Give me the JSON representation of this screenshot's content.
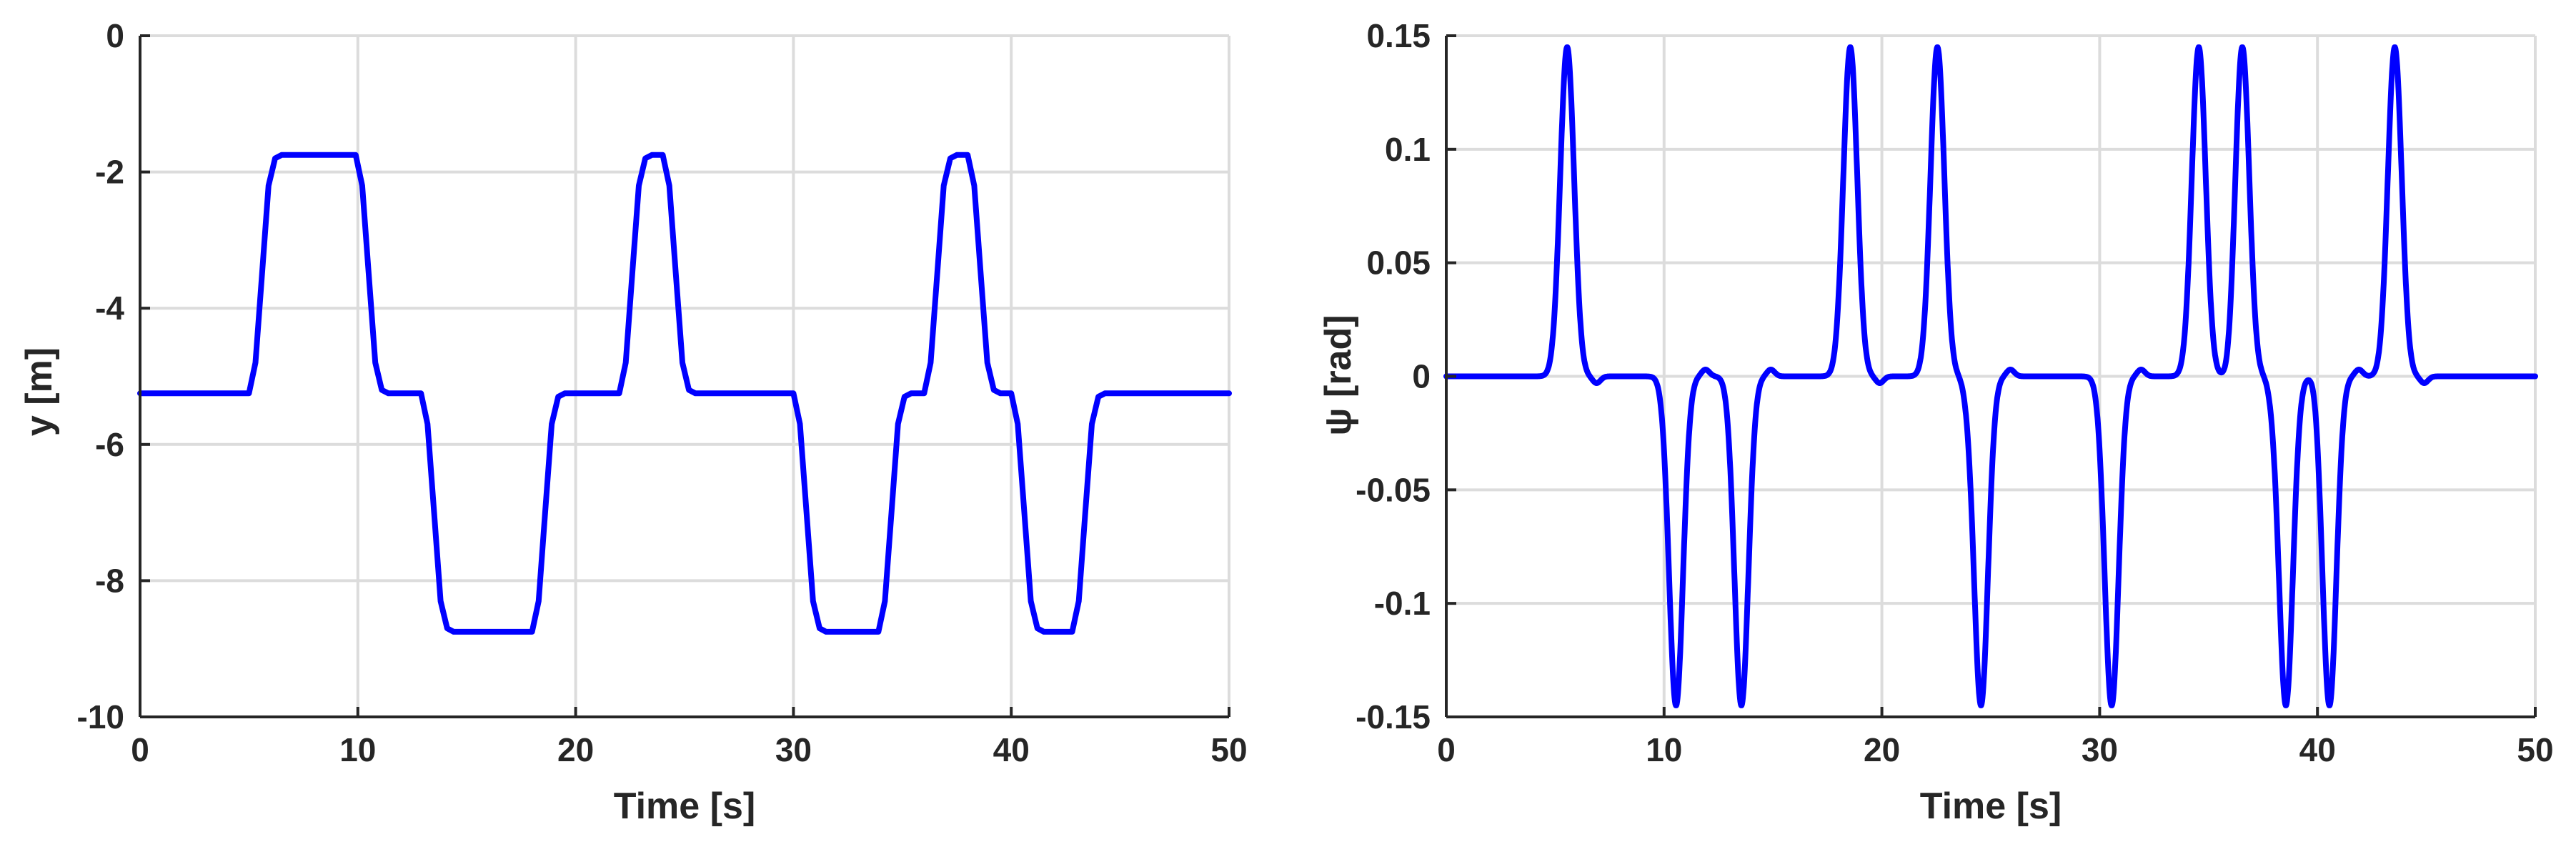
{
  "colors": {
    "line": "#0000ff",
    "grid": "#dcdcdc",
    "axis": "#262626"
  },
  "chart_data": [
    {
      "type": "line",
      "title": "",
      "xlabel": "Time [s]",
      "ylabel": "y [m]",
      "xlim": [
        0,
        50
      ],
      "ylim": [
        -10,
        0
      ],
      "xticks": [
        0,
        10,
        20,
        30,
        40,
        50
      ],
      "yticks": [
        -10,
        -8,
        -6,
        -4,
        -2,
        0
      ],
      "grid": true,
      "series": [
        {
          "x": [
            0,
            5.0,
            5.3,
            5.6,
            5.9,
            6.2,
            6.5,
            9.9,
            10.2,
            10.5,
            10.8,
            11.1,
            11.4,
            12.9,
            13.2,
            13.5,
            13.8,
            14.1,
            14.4,
            18.0,
            18.3,
            18.6,
            18.9,
            19.2,
            19.5,
            22.0,
            22.3,
            22.6,
            22.9,
            23.2,
            23.5,
            24.0,
            24.3,
            24.6,
            24.9,
            25.2,
            25.5,
            30.0,
            30.3,
            30.6,
            30.9,
            31.2,
            31.5,
            33.9,
            34.2,
            34.5,
            34.8,
            35.1,
            35.4,
            36.0,
            36.3,
            36.6,
            36.9,
            37.2,
            37.5,
            38.0,
            38.3,
            38.6,
            38.9,
            39.2,
            39.5,
            40.0,
            40.3,
            40.6,
            40.9,
            41.2,
            41.5,
            42.8,
            43.1,
            43.4,
            43.7,
            44.0,
            44.3,
            50
          ],
          "y": [
            -5.25,
            -5.25,
            -4.8,
            -3.5,
            -2.2,
            -1.8,
            -1.75,
            -1.75,
            -2.2,
            -3.5,
            -4.8,
            -5.2,
            -5.25,
            -5.25,
            -5.7,
            -7.0,
            -8.3,
            -8.7,
            -8.75,
            -8.75,
            -8.3,
            -7.0,
            -5.7,
            -5.3,
            -5.25,
            -5.25,
            -4.8,
            -3.5,
            -2.2,
            -1.8,
            -1.75,
            -1.75,
            -2.2,
            -3.5,
            -4.8,
            -5.2,
            -5.25,
            -5.25,
            -5.7,
            -7.0,
            -8.3,
            -8.7,
            -8.75,
            -8.75,
            -8.3,
            -7.0,
            -5.7,
            -5.3,
            -5.25,
            -5.25,
            -4.8,
            -3.5,
            -2.2,
            -1.8,
            -1.75,
            -1.75,
            -2.2,
            -3.5,
            -4.8,
            -5.2,
            -5.25,
            -5.25,
            -5.7,
            -7.0,
            -8.3,
            -8.7,
            -8.75,
            -8.75,
            -8.3,
            -7.0,
            -5.7,
            -5.3,
            -5.25,
            -5.25
          ]
        }
      ]
    },
    {
      "type": "line",
      "title": "",
      "xlabel": "Time [s]",
      "ylabel": "ψ [rad]",
      "xlim": [
        0,
        50
      ],
      "ylim": [
        -0.15,
        0.15
      ],
      "xticks": [
        0,
        10,
        20,
        30,
        40,
        50
      ],
      "yticks": [
        -0.15,
        -0.1,
        -0.05,
        0,
        0.05,
        0.1,
        0.15
      ],
      "grid": true,
      "pulses": [
        {
          "center": 5.55,
          "amplitude": 0.145
        },
        {
          "center": 10.55,
          "amplitude": -0.145
        },
        {
          "center": 13.55,
          "amplitude": -0.145
        },
        {
          "center": 18.55,
          "amplitude": 0.145
        },
        {
          "center": 22.55,
          "amplitude": 0.145
        },
        {
          "center": 24.55,
          "amplitude": -0.145
        },
        {
          "center": 30.55,
          "amplitude": -0.145
        },
        {
          "center": 34.55,
          "amplitude": 0.145
        },
        {
          "center": 36.55,
          "amplitude": 0.145
        },
        {
          "center": 38.55,
          "amplitude": -0.145
        },
        {
          "center": 40.55,
          "amplitude": -0.145
        },
        {
          "center": 43.55,
          "amplitude": 0.145
        }
      ],
      "pulse_width_s": 0.32,
      "undershoot": 0.02
    }
  ]
}
